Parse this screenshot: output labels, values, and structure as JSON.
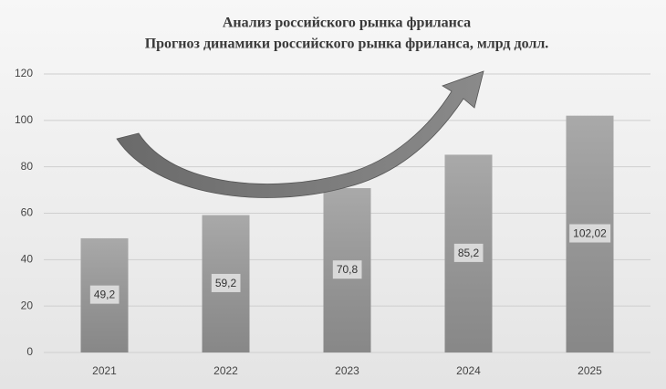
{
  "chart_data": {
    "type": "bar",
    "title": "Анализ российского рынка фриланса",
    "subtitle": "Прогноз динамики российского рынка фриланса,  млрд  долл.",
    "categories": [
      "2021",
      "2022",
      "2023",
      "2024",
      "2025"
    ],
    "values": [
      49.2,
      59.2,
      70.8,
      85.2,
      102.02
    ],
    "value_labels": [
      "49,2",
      "59,2",
      "70,8",
      "85,2",
      "102,02"
    ],
    "color": "#9a9a9a",
    "ylim": [
      0,
      120
    ],
    "yticks": [
      0,
      20,
      40,
      60,
      80,
      100,
      120
    ],
    "grid": true
  }
}
